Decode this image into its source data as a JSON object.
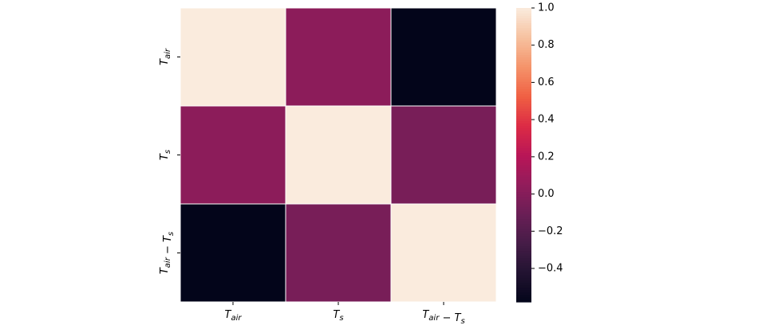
{
  "chart_data": {
    "type": "heatmap",
    "x_categories": [
      "Tair",
      "Ts",
      "Tair − Ts"
    ],
    "y_categories": [
      "Tair",
      "Ts",
      "Tair − Ts"
    ],
    "values": [
      [
        1,
        0.03,
        -0.58
      ],
      [
        0.03,
        1,
        -0.05
      ],
      [
        -0.58,
        -0.05,
        1
      ]
    ],
    "colormap": "rocket",
    "zlim": [
      -0.58,
      1
    ],
    "zticks": [
      {
        "value": -0.4,
        "label": "−0.4"
      },
      {
        "value": -0.2,
        "label": "−0.2"
      },
      {
        "value": 0,
        "label": "0.0"
      },
      0.2,
      0.4,
      0.6,
      0.8,
      {
        "value": 1,
        "label": "1.0"
      }
    ]
  }
}
